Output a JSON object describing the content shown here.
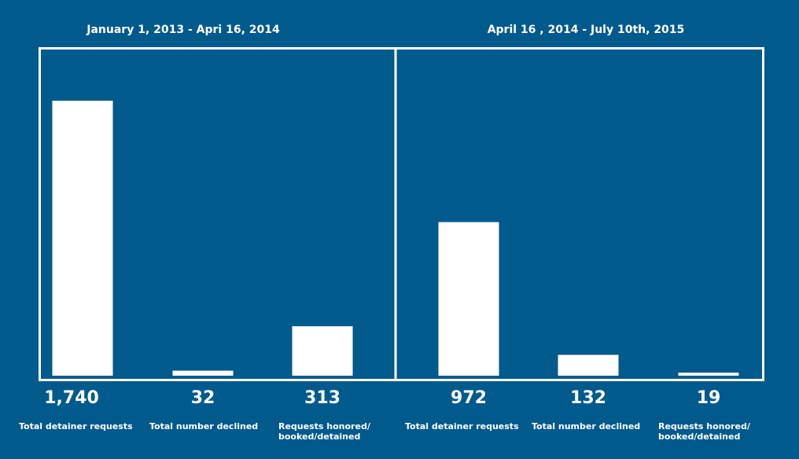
{
  "chart_data": [
    {
      "type": "bar",
      "title": "January 1, 2013 - Apri 16, 2014",
      "categories": [
        [
          "Total detainer requests"
        ],
        [
          "Total number declined"
        ],
        [
          "Requests honored/",
          "booked/detained"
        ]
      ],
      "values": [
        1740,
        32,
        313
      ],
      "value_labels": [
        "1,740",
        "32",
        "313"
      ],
      "ylim": [
        0,
        1900
      ],
      "grid": false,
      "bar_color": "#ffffff"
    },
    {
      "type": "bar",
      "title": "April 16 , 2014  - July 10th, 2015",
      "categories": [
        [
          "Total detainer requests"
        ],
        [
          "Total number declined"
        ],
        [
          "Requests honored/",
          "booked/detained"
        ]
      ],
      "values": [
        972,
        132,
        19
      ],
      "value_labels": [
        "972",
        "132",
        "19"
      ],
      "ylim": [
        0,
        1900
      ],
      "grid": false,
      "bar_color": "#ffffff"
    }
  ],
  "colors": {
    "background": "#015a8c",
    "foreground": "#ffffff"
  }
}
